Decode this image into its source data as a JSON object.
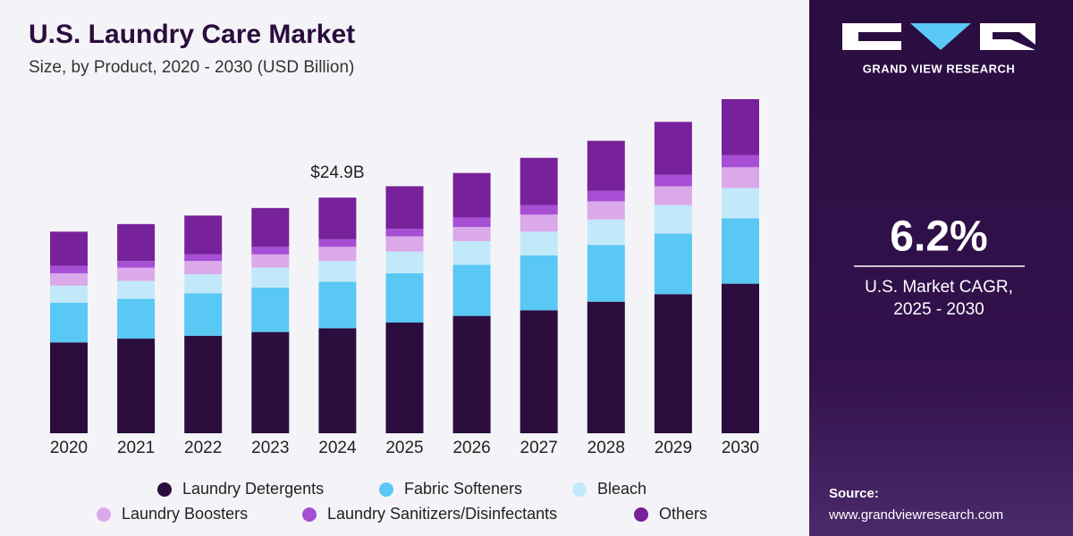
{
  "chart_data": {
    "type": "stacked_bar",
    "title": "U.S. Laundry Care Market",
    "subtitle": "Size, by Product, 2020 - 2030 (USD Billion)",
    "categories": [
      "2020",
      "2021",
      "2022",
      "2023",
      "2024",
      "2025",
      "2026",
      "2027",
      "2028",
      "2029",
      "2030"
    ],
    "series": [
      {
        "name": "Laundry Detergents",
        "color": "#2b0d3e",
        "values": [
          9.6,
          10.0,
          10.3,
          10.7,
          11.1,
          11.7,
          12.4,
          13.0,
          13.9,
          14.7,
          15.8
        ]
      },
      {
        "name": "Fabric Softeners",
        "color": "#5ac8f5",
        "values": [
          4.2,
          4.2,
          4.5,
          4.7,
          4.9,
          5.2,
          5.4,
          5.8,
          6.0,
          6.4,
          6.9
        ]
      },
      {
        "name": "Bleach",
        "color": "#c2e9f9",
        "values": [
          1.8,
          1.9,
          2.0,
          2.1,
          2.2,
          2.3,
          2.5,
          2.5,
          2.7,
          3.0,
          3.2
        ]
      },
      {
        "name": "Laundry Boosters",
        "color": "#dba9ea",
        "values": [
          1.3,
          1.4,
          1.4,
          1.4,
          1.5,
          1.6,
          1.5,
          1.8,
          1.9,
          2.0,
          2.2
        ]
      },
      {
        "name": "Laundry Sanitizers/Disinfectants",
        "color": "#a64fd4",
        "values": [
          0.8,
          0.7,
          0.7,
          0.8,
          0.8,
          0.8,
          1.0,
          1.0,
          1.1,
          1.2,
          1.3
        ]
      },
      {
        "name": "Others",
        "color": "#77219a",
        "values": [
          3.6,
          3.9,
          4.1,
          4.1,
          4.4,
          4.5,
          4.7,
          5.0,
          5.3,
          5.6,
          5.9
        ]
      }
    ],
    "total_label": {
      "category": "2024",
      "value": 24.9,
      "label": "$24.9B"
    }
  },
  "panel": {
    "brand": "GRAND VIEW RESEARCH",
    "cagr": "6.2%",
    "cagr_label_1": "U.S. Market CAGR,",
    "cagr_label_2": "2025 - 2030",
    "source_label": "Source:",
    "source_url": "www.grandviewresearch.com"
  }
}
